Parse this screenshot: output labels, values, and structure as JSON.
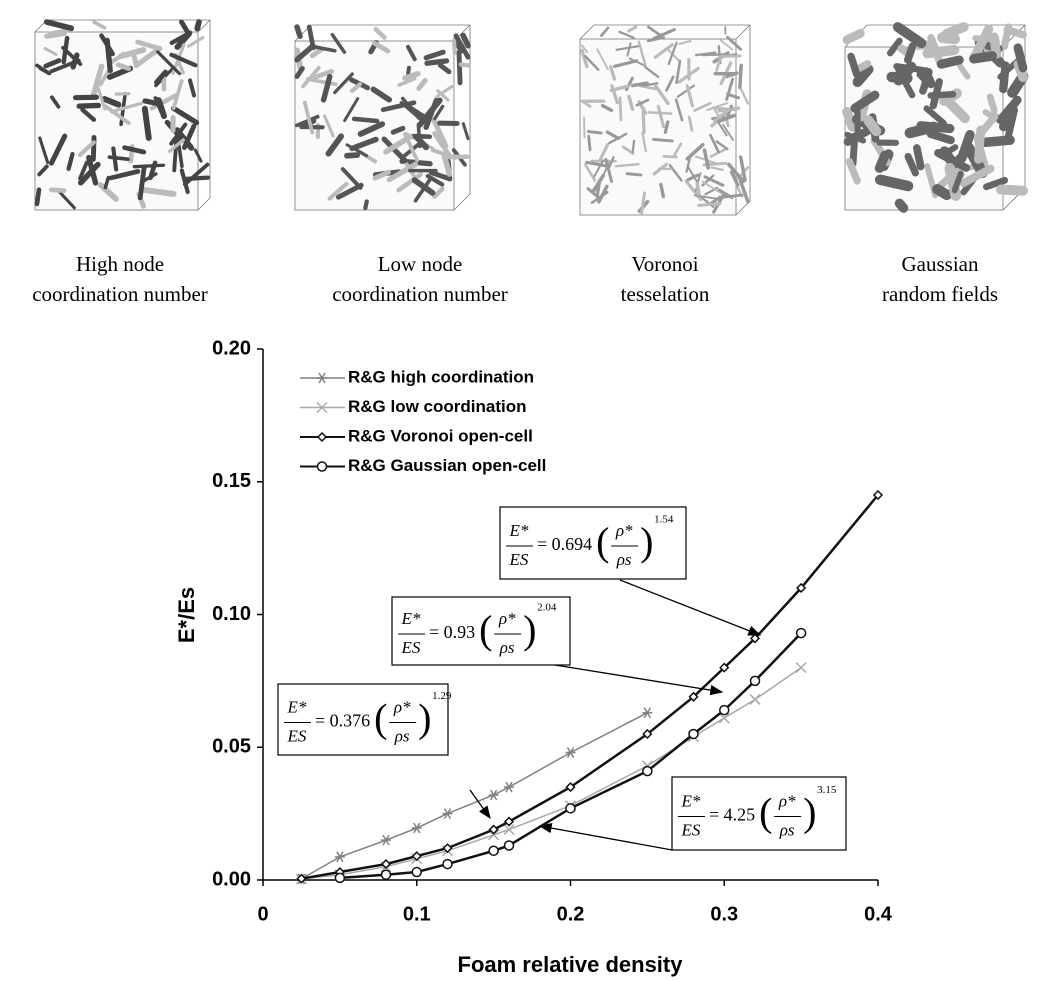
{
  "panels": [
    {
      "caption_line1": "High node",
      "caption_line2": "coordination number"
    },
    {
      "caption_line1": "Low node",
      "caption_line2": "coordination number"
    },
    {
      "caption_line1": "Voronoi",
      "caption_line2": "tesselation"
    },
    {
      "caption_line1": "Gaussian",
      "caption_line2": "random fields"
    }
  ],
  "chart_data": {
    "type": "line",
    "x_label": "Foam relative density",
    "y_label": "E*/Es",
    "xlim": [
      0,
      0.4
    ],
    "ylim": [
      0,
      0.2
    ],
    "xticks": [
      0,
      0.1,
      0.2,
      0.3,
      0.4
    ],
    "yticks": [
      {
        "value": 0,
        "label": "0.00"
      },
      {
        "value": 0.05,
        "label": "0.05"
      },
      {
        "value": 0.1,
        "label": "0.10"
      },
      {
        "value": 0.15,
        "label": "0.15"
      },
      {
        "value": 0.2,
        "label": "0.20"
      }
    ],
    "legend": "upper left",
    "series": [
      {
        "name": "R&G high coordination",
        "color": "#808080",
        "marker": "asterisk",
        "x": [
          0.025,
          0.05,
          0.08,
          0.1,
          0.12,
          0.15,
          0.16,
          0.2,
          0.25
        ],
        "values": [
          0.0004,
          0.0087,
          0.015,
          0.0196,
          0.025,
          0.032,
          0.035,
          0.048,
          0.063
        ]
      },
      {
        "name": "R&G low coordination",
        "color": "#a8a8a8",
        "marker": "cross",
        "x": [
          0.025,
          0.05,
          0.08,
          0.1,
          0.12,
          0.15,
          0.16,
          0.2,
          0.25,
          0.28,
          0.3,
          0.32,
          0.35
        ],
        "values": [
          0.0004,
          0.002,
          0.005,
          0.008,
          0.011,
          0.017,
          0.019,
          0.028,
          0.043,
          0.054,
          0.061,
          0.068,
          0.08
        ]
      },
      {
        "name": "R&G Voronoi open-cell",
        "color": "#111111",
        "marker": "diamond",
        "x": [
          0.025,
          0.05,
          0.08,
          0.1,
          0.12,
          0.15,
          0.16,
          0.2,
          0.25,
          0.28,
          0.3,
          0.32,
          0.35,
          0.4
        ],
        "values": [
          0.0005,
          0.003,
          0.006,
          0.009,
          0.012,
          0.019,
          0.022,
          0.035,
          0.055,
          0.069,
          0.08,
          0.091,
          0.11,
          0.145
        ]
      },
      {
        "name": "R&G Gaussian open-cell",
        "color": "#111111",
        "marker": "circle",
        "x": [
          0.05,
          0.08,
          0.1,
          0.12,
          0.15,
          0.16,
          0.2,
          0.25,
          0.28,
          0.3,
          0.32,
          0.35
        ],
        "values": [
          0.0008,
          0.002,
          0.003,
          0.006,
          0.011,
          0.013,
          0.027,
          0.041,
          0.055,
          0.064,
          0.075,
          0.093
        ]
      }
    ],
    "annotations": [
      {
        "lhs_top": "E*",
        "lhs_bottom": "ES",
        "coefficient": "= 0.694",
        "ratio_top": "ρ*",
        "ratio_bottom": "ρs",
        "exponent": "1.54"
      },
      {
        "lhs_top": "E*",
        "lhs_bottom": "ES",
        "coefficient": "= 0.93",
        "ratio_top": "ρ*",
        "ratio_bottom": "ρs",
        "exponent": "2.04"
      },
      {
        "lhs_top": "E*",
        "lhs_bottom": "ES",
        "coefficient": "= 0.376",
        "ratio_top": "ρ*",
        "ratio_bottom": "ρs",
        "exponent": "1.29"
      },
      {
        "lhs_top": "E*",
        "lhs_bottom": "ES",
        "coefficient": "= 4.25",
        "ratio_top": "ρ*",
        "ratio_bottom": "ρs",
        "exponent": "3.15"
      }
    ]
  }
}
